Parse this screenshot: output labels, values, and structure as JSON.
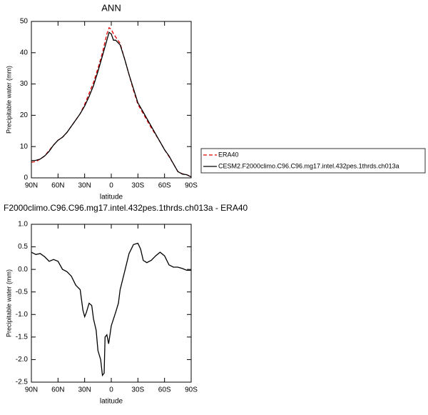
{
  "chart_data": [
    {
      "type": "line",
      "title": "ANN",
      "xlabel": "latitude",
      "ylabel": "Precipitable water (mm)",
      "x": [
        90,
        85,
        80,
        75,
        70,
        65,
        60,
        55,
        50,
        45,
        40,
        35,
        30,
        25,
        20,
        15,
        10,
        5,
        2.5,
        0,
        -2.5,
        -5,
        -10,
        -15,
        -20,
        -25,
        -30,
        -35,
        -40,
        -45,
        -50,
        -55,
        -60,
        -65,
        -70,
        -75,
        -80,
        -85,
        -90
      ],
      "series": [
        {
          "name": "ERA40",
          "color": "#e00000",
          "linestyle": "dashed",
          "values": [
            5,
            5.2,
            6,
            7,
            8.8,
            10.5,
            12,
            13,
            14.5,
            16.5,
            18.5,
            20.5,
            23.5,
            27,
            30.5,
            35,
            40,
            46,
            48,
            47.5,
            46,
            45,
            43,
            38,
            33,
            28,
            23.5,
            21,
            18.5,
            16,
            13.8,
            11.5,
            9,
            6.8,
            4.5,
            2,
            1.3,
            1,
            0.3
          ]
        },
        {
          "name": "CESM2.F2000climo.C96.C96.mg17.intel.432pes.1thrds.ch013a",
          "color": "#000000",
          "linestyle": "solid",
          "values": [
            5.5,
            5.6,
            6,
            7,
            8.5,
            10.5,
            12,
            13,
            14.5,
            16.5,
            18.5,
            20.5,
            23,
            26,
            29.5,
            34,
            39,
            44,
            46.5,
            46,
            44,
            44,
            42.5,
            38,
            33,
            28.5,
            24,
            21.5,
            19,
            16.5,
            14,
            11.5,
            9,
            7,
            4.5,
            2,
            1.2,
            1,
            0.3
          ]
        }
      ],
      "xlim": [
        90,
        -90
      ],
      "xticks": [
        {
          "value": 90,
          "label": "90N"
        },
        {
          "value": 60,
          "label": "60N"
        },
        {
          "value": 30,
          "label": "30N"
        },
        0,
        {
          "value": -30,
          "label": "30S"
        },
        {
          "value": -60,
          "label": "60S"
        },
        {
          "value": -90,
          "label": "90S"
        }
      ],
      "ylim": [
        0,
        50
      ],
      "yticks": [
        0,
        10,
        20,
        30,
        40,
        50
      ],
      "legend": "right"
    },
    {
      "type": "line",
      "title": "F2000climo.C96.C96.mg17.intel.432pes.1thrds.ch013a - ERA40",
      "xlabel": "latitude",
      "ylabel": "Precipitable water (mm)",
      "x": [
        90,
        85,
        80,
        75,
        70,
        65,
        60,
        55,
        50,
        45,
        40,
        35,
        32,
        30,
        28,
        25,
        22,
        20,
        17,
        15,
        12,
        10,
        8,
        7,
        5,
        3,
        0,
        -5,
        -8,
        -10,
        -15,
        -20,
        -25,
        -30,
        -33,
        -36,
        -40,
        -45,
        -50,
        -55,
        -60,
        -65,
        -70,
        -75,
        -80,
        -85,
        -90
      ],
      "series": [
        {
          "color": "#000000",
          "linestyle": "solid",
          "values": [
            0.38,
            0.33,
            0.35,
            0.28,
            0.18,
            0.22,
            0.18,
            0,
            -0.05,
            -0.15,
            -0.35,
            -0.45,
            -0.9,
            -1.05,
            -0.95,
            -0.75,
            -0.8,
            -1.1,
            -1.35,
            -1.8,
            -2,
            -2.35,
            -2.3,
            -1.5,
            -1.45,
            -1.65,
            -1.25,
            -0.95,
            -0.75,
            -0.45,
            -0.05,
            0.35,
            0.55,
            0.58,
            0.45,
            0.2,
            0.15,
            0.2,
            0.3,
            0.38,
            0.3,
            0.1,
            0.05,
            0.05,
            0.02,
            -0.02,
            -0.02
          ]
        }
      ],
      "xlim": [
        90,
        -90
      ],
      "xticks": [
        {
          "value": 90,
          "label": "90N"
        },
        {
          "value": 60,
          "label": "60N"
        },
        {
          "value": 30,
          "label": "30N"
        },
        0,
        {
          "value": -30,
          "label": "30S"
        },
        {
          "value": -60,
          "label": "60S"
        },
        {
          "value": -90,
          "label": "90S"
        }
      ],
      "ylim": [
        -2.5,
        1
      ],
      "yticks": [
        {
          "value": 1,
          "label": "1.0"
        },
        0.5,
        {
          "value": 0,
          "label": "0.0"
        },
        -0.5,
        {
          "value": -1,
          "label": "-1.0"
        },
        -1.5,
        {
          "value": -2,
          "label": "-2.0"
        },
        -2.5
      ]
    }
  ]
}
